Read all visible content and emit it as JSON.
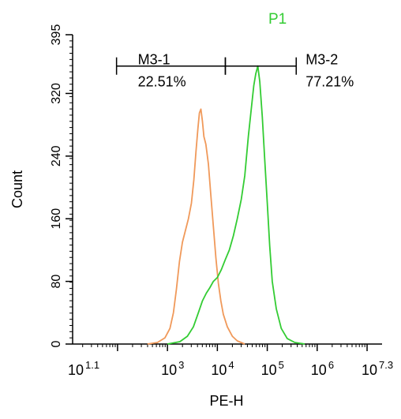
{
  "chart_data": {
    "type": "line",
    "title": "P1",
    "title_color": "#33cc33",
    "xlabel": "PE-H",
    "ylabel": "Count",
    "x_scale": "log10",
    "xlim_exponent": [
      1.1,
      7.3
    ],
    "x_ticks": [
      {
        "base": "10",
        "exp": "1.1",
        "value": 1.1
      },
      {
        "base": "10",
        "exp": "3",
        "value": 3
      },
      {
        "base": "10",
        "exp": "4",
        "value": 4
      },
      {
        "base": "10",
        "exp": "5",
        "value": 5
      },
      {
        "base": "10",
        "exp": "6",
        "value": 6
      },
      {
        "base": "10",
        "exp": "7.3",
        "value": 7.3
      }
    ],
    "ylim": [
      0,
      395
    ],
    "y_ticks": [
      "0",
      "80",
      "160",
      "240",
      "320",
      "395"
    ],
    "y_tick_values": [
      0,
      80,
      160,
      240,
      320,
      395
    ],
    "grid": false,
    "series": [
      {
        "color": "#f0995a",
        "points": [
          [
            2.6,
            0
          ],
          [
            2.8,
            2
          ],
          [
            2.95,
            8
          ],
          [
            3.05,
            20
          ],
          [
            3.12,
            40
          ],
          [
            3.18,
            70
          ],
          [
            3.24,
            105
          ],
          [
            3.3,
            130
          ],
          [
            3.36,
            145
          ],
          [
            3.42,
            160
          ],
          [
            3.48,
            180
          ],
          [
            3.53,
            210
          ],
          [
            3.57,
            245
          ],
          [
            3.61,
            275
          ],
          [
            3.64,
            295
          ],
          [
            3.67,
            300
          ],
          [
            3.7,
            285
          ],
          [
            3.73,
            265
          ],
          [
            3.77,
            255
          ],
          [
            3.82,
            230
          ],
          [
            3.87,
            190
          ],
          [
            3.92,
            150
          ],
          [
            3.97,
            110
          ],
          [
            4.02,
            78
          ],
          [
            4.07,
            55
          ],
          [
            4.12,
            38
          ],
          [
            4.2,
            22
          ],
          [
            4.3,
            10
          ],
          [
            4.4,
            4
          ],
          [
            4.55,
            0
          ]
        ]
      },
      {
        "color": "#33cc33",
        "points": [
          [
            3.0,
            0
          ],
          [
            3.25,
            3
          ],
          [
            3.4,
            10
          ],
          [
            3.52,
            22
          ],
          [
            3.62,
            40
          ],
          [
            3.7,
            55
          ],
          [
            3.78,
            65
          ],
          [
            3.85,
            72
          ],
          [
            3.92,
            80
          ],
          [
            4.0,
            85
          ],
          [
            4.08,
            95
          ],
          [
            4.16,
            108
          ],
          [
            4.24,
            120
          ],
          [
            4.32,
            138
          ],
          [
            4.4,
            160
          ],
          [
            4.48,
            185
          ],
          [
            4.55,
            215
          ],
          [
            4.62,
            265
          ],
          [
            4.68,
            300
          ],
          [
            4.73,
            330
          ],
          [
            4.77,
            345
          ],
          [
            4.81,
            355
          ],
          [
            4.85,
            335
          ],
          [
            4.9,
            290
          ],
          [
            4.95,
            235
          ],
          [
            5.0,
            180
          ],
          [
            5.05,
            125
          ],
          [
            5.1,
            80
          ],
          [
            5.18,
            45
          ],
          [
            5.28,
            20
          ],
          [
            5.4,
            7
          ],
          [
            5.55,
            2
          ],
          [
            5.75,
            0
          ]
        ]
      }
    ],
    "markers": [
      {
        "name": "M3-1",
        "value": "22.51%",
        "x_start": 1.98,
        "x_end": 4.16,
        "y": 355
      },
      {
        "name": "M3-2",
        "value": "77.21%",
        "x_start": 4.16,
        "x_end": 5.58,
        "y": 355
      }
    ]
  }
}
